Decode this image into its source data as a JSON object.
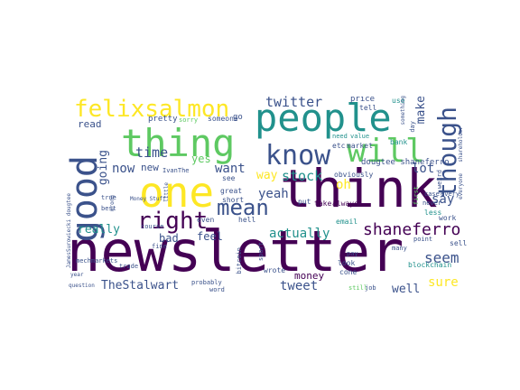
{
  "palette": {
    "background": "#ffffff",
    "dark_purple": "#440154",
    "deep_blue": "#3b528b",
    "teal": "#21918c",
    "green": "#5ec962",
    "yellow": "#fde725"
  },
  "words": {
    "newsletter": "newsletter",
    "think": "think",
    "people": "people",
    "thing": "thing",
    "one": "one",
    "good": "good",
    "will": "will",
    "know": "know",
    "felixsalmon": "felixsalmon",
    "mean": "mean",
    "right": "right",
    "though": "though",
    "shaneferro": "shaneferro",
    "twitter": "twitter",
    "stock": "stock",
    "yeah": "yeah",
    "actually": "actually",
    "seem": "seem",
    "TheStalwart": "TheStalwart",
    "tweet": "tweet",
    "really": "really",
    "time": "time",
    "now": "now",
    "going": "going",
    "make": "make",
    "want": "want",
    "lot": "lot",
    "say": "say",
    "sure": "sure",
    "well": "well",
    "way": "way",
    "oh": "oh",
    "feel": "feel",
    "bad": "bad",
    "yes": "yes",
    "read": "read",
    "money": "money",
    "new": "new",
    "dougtee_shaneferro": "dougtee shaneferro",
    "price": "price",
    "pretty": "pretty",
    "sorry": "sorry",
    "someone": "someone",
    "go": "go",
    "tell": "tell",
    "use": "use",
    "need": "need",
    "value": "value",
    "etc": "etc",
    "market": "market",
    "bank": "bank",
    "obviously": "obviously",
    "IvanThe": "IvanThe",
    "see": "see",
    "great": "great",
    "short": "short",
    "take": "take",
    "always": "always",
    "put": "put",
    "even": "even",
    "hell": "hell",
    "email": "email",
    "wrote": "wrote",
    "cone": "cone",
    "look": "look",
    "many": "many",
    "pay": "pay",
    "less": "less",
    "work": "work",
    "blockchain": "blockchain",
    "sell": "sell",
    "point": "point",
    "never": "never",
    "case": "case",
    "every": "every",
    "still": "still",
    "job": "job",
    "probably": "probably",
    "word": "word",
    "trade": "trade",
    "fine": "fine",
    "mechmarkets": "mechmarkets",
    "question": "question",
    "JamesSurowiecki_dougtee": "JamesSurowiecki dougtee",
    "best": "best",
    "true": "true",
    "Money_Stuff": "Money Stuff",
    "course": "course",
    "something": "something",
    "shareholder": "shareholder",
    "everyone": "everyone",
    "weird": "weird",
    "day": "day",
    "first": "first",
    "bitcoin": "bitcoin",
    "sport": "sport",
    "little": "little",
    "wrong": "wrong",
    "year": "year"
  }
}
